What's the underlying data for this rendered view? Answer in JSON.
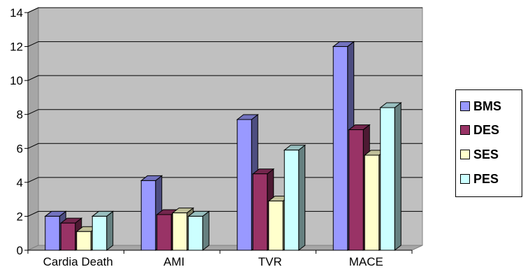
{
  "chart_data": {
    "type": "bar",
    "categories": [
      "Cardia Death",
      "AMI",
      "TVR",
      "MACE"
    ],
    "series": [
      {
        "name": "BMS",
        "values": [
          2.0,
          4.1,
          7.7,
          12.0
        ],
        "color": "#9999ff"
      },
      {
        "name": "DES",
        "values": [
          1.6,
          2.1,
          4.5,
          7.1
        ],
        "color": "#993366"
      },
      {
        "name": "SES",
        "values": [
          1.1,
          2.2,
          2.9,
          5.6
        ],
        "color": "#ffffcc"
      },
      {
        "name": "PES",
        "values": [
          2.0,
          2.0,
          5.9,
          8.4
        ],
        "color": "#ccffff"
      }
    ],
    "ylim": [
      0,
      14
    ],
    "yticks": [
      0,
      2,
      4,
      6,
      8,
      10,
      12,
      14
    ],
    "grid": true,
    "legend": "right",
    "plot_background": "#c0c0c0"
  }
}
